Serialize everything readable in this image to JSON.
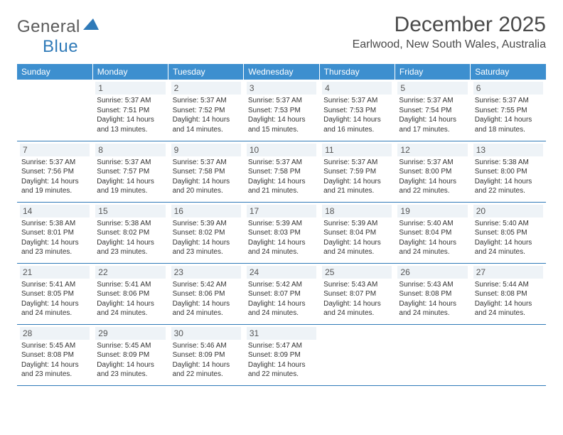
{
  "logo": {
    "text1": "General",
    "text2": "Blue"
  },
  "title": "December 2025",
  "location": "Earlwood, New South Wales, Australia",
  "colors": {
    "header_bg": "#3d8fcf",
    "header_text": "#ffffff",
    "daynum_bg": "#eef3f7",
    "border": "#2f7ab8",
    "logo_gray": "#5a5a5a",
    "logo_blue": "#2f7ab8"
  },
  "weekdays": [
    "Sunday",
    "Monday",
    "Tuesday",
    "Wednesday",
    "Thursday",
    "Friday",
    "Saturday"
  ],
  "grid": [
    [
      null,
      {
        "n": "1",
        "sr": "5:37 AM",
        "ss": "7:51 PM",
        "dl": "14 hours and 13 minutes."
      },
      {
        "n": "2",
        "sr": "5:37 AM",
        "ss": "7:52 PM",
        "dl": "14 hours and 14 minutes."
      },
      {
        "n": "3",
        "sr": "5:37 AM",
        "ss": "7:53 PM",
        "dl": "14 hours and 15 minutes."
      },
      {
        "n": "4",
        "sr": "5:37 AM",
        "ss": "7:53 PM",
        "dl": "14 hours and 16 minutes."
      },
      {
        "n": "5",
        "sr": "5:37 AM",
        "ss": "7:54 PM",
        "dl": "14 hours and 17 minutes."
      },
      {
        "n": "6",
        "sr": "5:37 AM",
        "ss": "7:55 PM",
        "dl": "14 hours and 18 minutes."
      }
    ],
    [
      {
        "n": "7",
        "sr": "5:37 AM",
        "ss": "7:56 PM",
        "dl": "14 hours and 19 minutes."
      },
      {
        "n": "8",
        "sr": "5:37 AM",
        "ss": "7:57 PM",
        "dl": "14 hours and 19 minutes."
      },
      {
        "n": "9",
        "sr": "5:37 AM",
        "ss": "7:58 PM",
        "dl": "14 hours and 20 minutes."
      },
      {
        "n": "10",
        "sr": "5:37 AM",
        "ss": "7:58 PM",
        "dl": "14 hours and 21 minutes."
      },
      {
        "n": "11",
        "sr": "5:37 AM",
        "ss": "7:59 PM",
        "dl": "14 hours and 21 minutes."
      },
      {
        "n": "12",
        "sr": "5:37 AM",
        "ss": "8:00 PM",
        "dl": "14 hours and 22 minutes."
      },
      {
        "n": "13",
        "sr": "5:38 AM",
        "ss": "8:00 PM",
        "dl": "14 hours and 22 minutes."
      }
    ],
    [
      {
        "n": "14",
        "sr": "5:38 AM",
        "ss": "8:01 PM",
        "dl": "14 hours and 23 minutes."
      },
      {
        "n": "15",
        "sr": "5:38 AM",
        "ss": "8:02 PM",
        "dl": "14 hours and 23 minutes."
      },
      {
        "n": "16",
        "sr": "5:39 AM",
        "ss": "8:02 PM",
        "dl": "14 hours and 23 minutes."
      },
      {
        "n": "17",
        "sr": "5:39 AM",
        "ss": "8:03 PM",
        "dl": "14 hours and 24 minutes."
      },
      {
        "n": "18",
        "sr": "5:39 AM",
        "ss": "8:04 PM",
        "dl": "14 hours and 24 minutes."
      },
      {
        "n": "19",
        "sr": "5:40 AM",
        "ss": "8:04 PM",
        "dl": "14 hours and 24 minutes."
      },
      {
        "n": "20",
        "sr": "5:40 AM",
        "ss": "8:05 PM",
        "dl": "14 hours and 24 minutes."
      }
    ],
    [
      {
        "n": "21",
        "sr": "5:41 AM",
        "ss": "8:05 PM",
        "dl": "14 hours and 24 minutes."
      },
      {
        "n": "22",
        "sr": "5:41 AM",
        "ss": "8:06 PM",
        "dl": "14 hours and 24 minutes."
      },
      {
        "n": "23",
        "sr": "5:42 AM",
        "ss": "8:06 PM",
        "dl": "14 hours and 24 minutes."
      },
      {
        "n": "24",
        "sr": "5:42 AM",
        "ss": "8:07 PM",
        "dl": "14 hours and 24 minutes."
      },
      {
        "n": "25",
        "sr": "5:43 AM",
        "ss": "8:07 PM",
        "dl": "14 hours and 24 minutes."
      },
      {
        "n": "26",
        "sr": "5:43 AM",
        "ss": "8:08 PM",
        "dl": "14 hours and 24 minutes."
      },
      {
        "n": "27",
        "sr": "5:44 AM",
        "ss": "8:08 PM",
        "dl": "14 hours and 24 minutes."
      }
    ],
    [
      {
        "n": "28",
        "sr": "5:45 AM",
        "ss": "8:08 PM",
        "dl": "14 hours and 23 minutes."
      },
      {
        "n": "29",
        "sr": "5:45 AM",
        "ss": "8:09 PM",
        "dl": "14 hours and 23 minutes."
      },
      {
        "n": "30",
        "sr": "5:46 AM",
        "ss": "8:09 PM",
        "dl": "14 hours and 22 minutes."
      },
      {
        "n": "31",
        "sr": "5:47 AM",
        "ss": "8:09 PM",
        "dl": "14 hours and 22 minutes."
      },
      null,
      null,
      null
    ]
  ],
  "labels": {
    "sunrise": "Sunrise:",
    "sunset": "Sunset:",
    "daylight": "Daylight:"
  }
}
